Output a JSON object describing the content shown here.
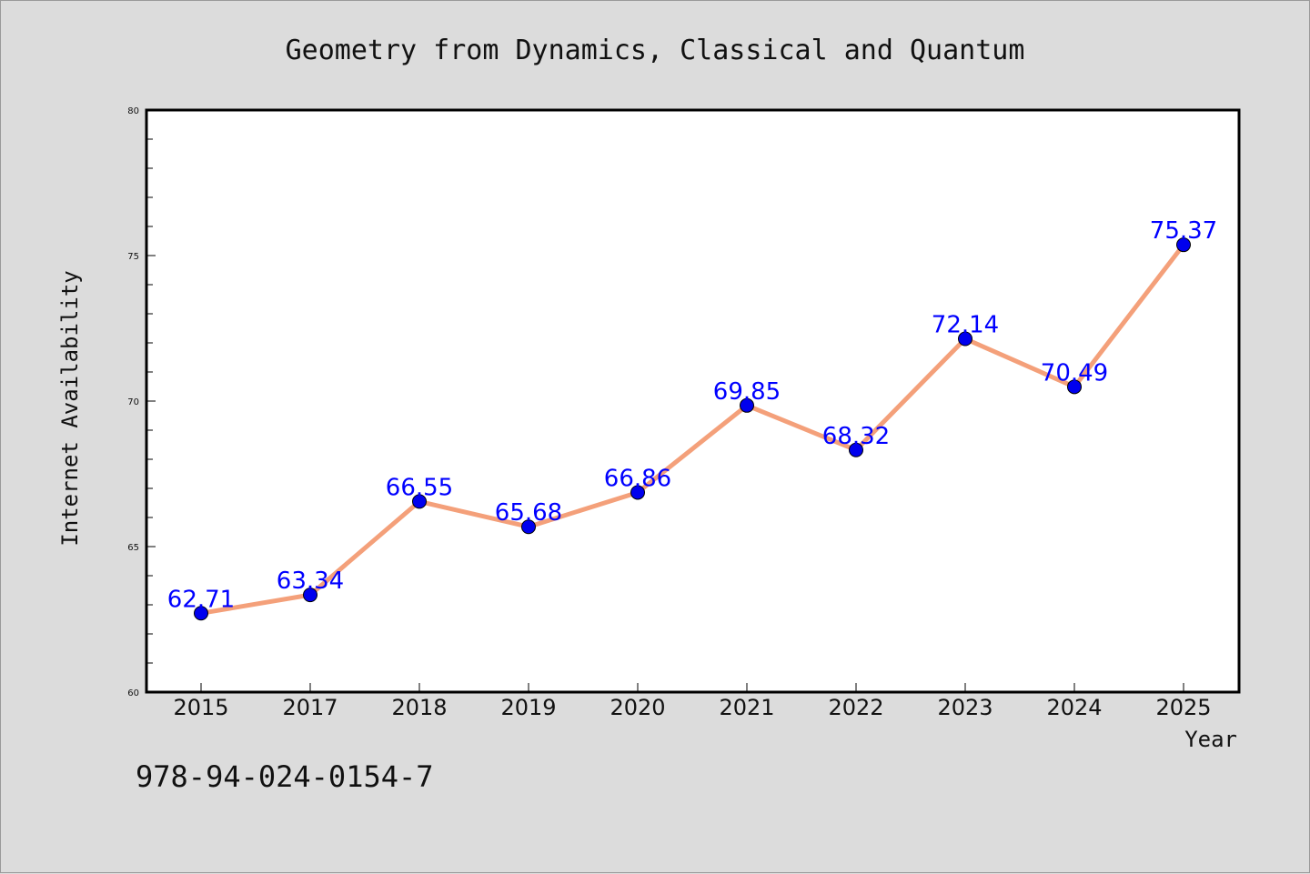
{
  "chart_data": {
    "type": "line",
    "title": "Geometry from Dynamics, Classical and Quantum",
    "xlabel": "Year",
    "ylabel": "Internet Availability",
    "categories": [
      "2015",
      "2017",
      "2018",
      "2019",
      "2020",
      "2021",
      "2022",
      "2023",
      "2024",
      "2025"
    ],
    "values": [
      62.71,
      63.34,
      66.55,
      65.68,
      66.86,
      69.85,
      68.32,
      72.14,
      70.49,
      75.37
    ],
    "data_labels": [
      "62.71",
      "63.34",
      "66.55",
      "65.68",
      "66.86",
      "69.85",
      "68.32",
      "72.14",
      "70.49",
      "75.37"
    ],
    "ylim": [
      60,
      80
    ],
    "yticks": [
      "60",
      "65",
      "70",
      "75",
      "80"
    ],
    "grid": false,
    "colors": {
      "line": "#f4a07a",
      "marker": "#0000ee",
      "label": "#0000ff",
      "background": "#dcdcdc",
      "plot_area": "#ffffff"
    }
  },
  "footer_text": "978-94-024-0154-7"
}
